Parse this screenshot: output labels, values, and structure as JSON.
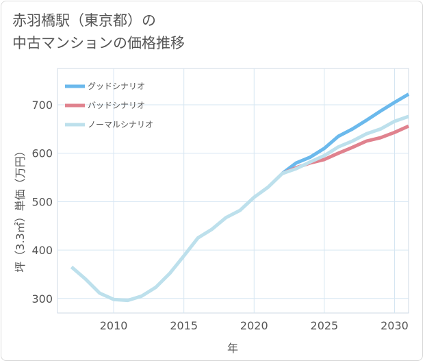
{
  "title": {
    "line1": "赤羽橋駅（東京都）の",
    "line2": "中古マンションの価格推移"
  },
  "chart_data": {
    "type": "line",
    "xlabel": "年",
    "ylabel": "坪（3.3㎡）単価（万円）",
    "xlim": [
      2006,
      2031
    ],
    "ylim": [
      270,
      775
    ],
    "xticks": [
      2010,
      2015,
      2020,
      2025,
      2030
    ],
    "yticks": [
      300,
      400,
      500,
      600,
      700
    ],
    "grid": true,
    "legend_position": "top-left",
    "series": [
      {
        "name": "グッドシナリオ",
        "color": "#6bb9ec",
        "x": [
          2022,
          2023,
          2024,
          2025,
          2026,
          2027,
          2028,
          2029,
          2030,
          2031
        ],
        "y": [
          558,
          580,
          592,
          610,
          635,
          650,
          668,
          687,
          705,
          722
        ]
      },
      {
        "name": "バッドシナリオ",
        "color": "#e0828e",
        "x": [
          2022,
          2023,
          2024,
          2025,
          2026,
          2027,
          2028,
          2029,
          2030,
          2031
        ],
        "y": [
          558,
          570,
          580,
          587,
          600,
          612,
          625,
          632,
          643,
          656
        ]
      },
      {
        "name": "ノーマルシナリオ",
        "color": "#bde0ec",
        "x": [
          2007,
          2008,
          2009,
          2010,
          2011,
          2012,
          2013,
          2014,
          2015,
          2016,
          2017,
          2018,
          2019,
          2020,
          2021,
          2022,
          2023,
          2024,
          2025,
          2026,
          2027,
          2028,
          2029,
          2030,
          2031
        ],
        "y": [
          365,
          340,
          311,
          298,
          296,
          305,
          323,
          352,
          388,
          425,
          443,
          467,
          482,
          509,
          530,
          558,
          568,
          582,
          595,
          613,
          625,
          640,
          650,
          666,
          676
        ]
      }
    ]
  }
}
